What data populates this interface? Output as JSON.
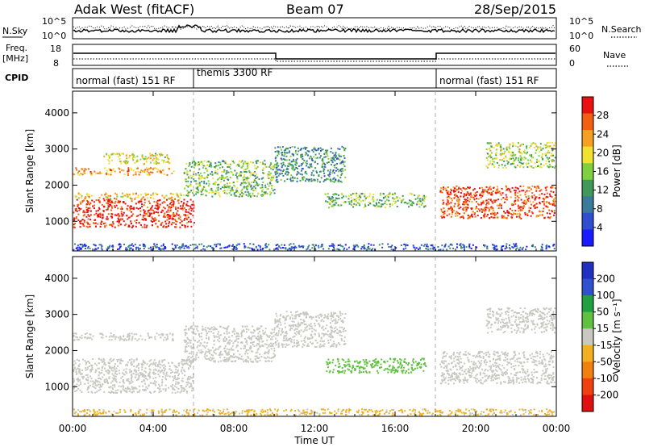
{
  "header": {
    "station": "Adak West (fitACF)",
    "beam": "Beam 07",
    "date": "28/Sep/2015"
  },
  "nsky_panel": {
    "label": "N.Sky",
    "ticks": [
      "10^5",
      "10^0"
    ],
    "right_label": "N.Search",
    "right_ticks": [
      "10^5",
      "10^0"
    ]
  },
  "freq_panel": {
    "label_line1": "Freq.",
    "label_line2": "[MHz]",
    "ticks": [
      "18",
      "8"
    ],
    "right_label": "Nave",
    "right_ticks": [
      "60",
      "0"
    ]
  },
  "cpid": {
    "label": "CPID",
    "segments": [
      {
        "name": "normal (fast) 151 RF",
        "start": 0,
        "end": 6
      },
      {
        "name": "themis 3300 RF",
        "start": 6,
        "end": 18
      },
      {
        "name": "normal (fast) 151 RF",
        "start": 18,
        "end": 24
      }
    ]
  },
  "chart_data": [
    {
      "type": "heatmap",
      "title": "",
      "xlabel": "Time UT",
      "ylabel": "Slant Range [km]",
      "x_ticks": [
        "00:00",
        "04:00",
        "08:00",
        "12:00",
        "16:00",
        "20:00",
        "00:00"
      ],
      "x_tick_hours": [
        0,
        4,
        8,
        12,
        16,
        20,
        24
      ],
      "xlim_hours": [
        0,
        24
      ],
      "y_ticks": [
        1000,
        2000,
        3000,
        4000
      ],
      "ylim": [
        180,
        4600
      ],
      "colorbar": {
        "label": "Power [dB]",
        "ticks": [
          "4",
          "8",
          "12",
          "16",
          "20",
          "24",
          "28"
        ],
        "range": [
          0,
          30
        ],
        "colors": [
          "#1a1aff",
          "#2f4fd0",
          "#3a7a9a",
          "#3f9a5a",
          "#7fd040",
          "#f0e030",
          "#f5a020",
          "#f06010",
          "#e81010"
        ]
      },
      "echo_regions": [
        {
          "t0": 0.0,
          "t1": 6.0,
          "r0": 850,
          "r1": 1650,
          "value": 28
        },
        {
          "t0": 0.0,
          "t1": 5.5,
          "r0": 1650,
          "r1": 1800,
          "value": 20
        },
        {
          "t0": 0.0,
          "t1": 5.0,
          "r0": 2300,
          "r1": 2500,
          "value": 22
        },
        {
          "t0": 1.5,
          "t1": 4.8,
          "r0": 2600,
          "r1": 2900,
          "value": 18
        },
        {
          "t0": 5.5,
          "t1": 10.0,
          "r0": 1700,
          "r1": 2700,
          "value": 14
        },
        {
          "t0": 10.0,
          "t1": 13.5,
          "r0": 2100,
          "r1": 3100,
          "value": 10
        },
        {
          "t0": 12.5,
          "t1": 17.5,
          "r0": 1400,
          "r1": 1800,
          "value": 14
        },
        {
          "t0": 18.2,
          "t1": 24.0,
          "r0": 1100,
          "r1": 2000,
          "value": 26
        },
        {
          "t0": 20.5,
          "t1": 24.0,
          "r0": 2500,
          "r1": 3200,
          "value": 16
        },
        {
          "t0": 0.0,
          "t1": 24.0,
          "r0": 200,
          "r1": 400,
          "value": 6
        }
      ]
    },
    {
      "type": "heatmap",
      "title": "",
      "xlabel": "Time UT",
      "ylabel": "Slant Range [km]",
      "x_ticks": [
        "00:00",
        "04:00",
        "08:00",
        "12:00",
        "16:00",
        "20:00",
        "00:00"
      ],
      "x_tick_hours": [
        0,
        4,
        8,
        12,
        16,
        20,
        24
      ],
      "xlim_hours": [
        0,
        24
      ],
      "y_ticks": [
        1000,
        2000,
        3000,
        4000
      ],
      "ylim": [
        180,
        4600
      ],
      "colorbar": {
        "label": "Velocity [m s⁻¹]",
        "ticks": [
          "200",
          "100",
          "50",
          "15",
          "-15",
          "-50",
          "-100",
          "-200"
        ],
        "range": [
          -250,
          250
        ],
        "colors": [
          "#2030c0",
          "#3050d0",
          "#20a040",
          "#60c040",
          "#c8c8c0",
          "#f0b020",
          "#f08010",
          "#f04010",
          "#e01010"
        ]
      },
      "echo_regions": [
        {
          "t0": 0.0,
          "t1": 6.0,
          "r0": 850,
          "r1": 1800,
          "value": 0
        },
        {
          "t0": 0.0,
          "t1": 5.0,
          "r0": 2300,
          "r1": 2500,
          "value": 0
        },
        {
          "t0": 5.5,
          "t1": 10.0,
          "r0": 1700,
          "r1": 2700,
          "value": 0
        },
        {
          "t0": 10.0,
          "t1": 13.5,
          "r0": 2100,
          "r1": 3100,
          "value": 0
        },
        {
          "t0": 12.5,
          "t1": 17.5,
          "r0": 1400,
          "r1": 1800,
          "value": 60
        },
        {
          "t0": 18.2,
          "t1": 24.0,
          "r0": 1100,
          "r1": 2000,
          "value": 0
        },
        {
          "t0": 20.5,
          "t1": 24.0,
          "r0": 2500,
          "r1": 3200,
          "value": 0
        },
        {
          "t0": 0.0,
          "t1": 24.0,
          "r0": 200,
          "r1": 400,
          "value": -40
        }
      ]
    }
  ]
}
